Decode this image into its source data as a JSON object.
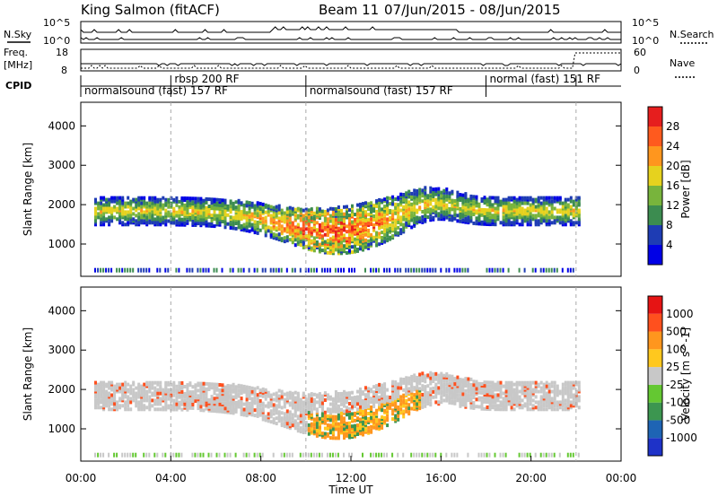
{
  "header": {
    "station": "King Salmon (fitACF)",
    "beam": "Beam 11",
    "dates": "07/Jun/2015 - 08/Jun/2015"
  },
  "panels": {
    "nsky_label": "N.Sky",
    "nsearch_label": "N.Search",
    "freq_label_1": "Freq.",
    "freq_label_2": "[MHz]",
    "nave_label": "Nave",
    "cpid_label": "CPID",
    "nsky_ticks": [
      "10^5",
      "10^0"
    ],
    "nsearch_ticks": [
      "10^5",
      "10^0"
    ],
    "freq_ticks": [
      "18",
      "8"
    ],
    "nave_ticks": [
      "60",
      "0"
    ]
  },
  "cpid_segments": [
    {
      "label": "normalsound (fast) 157 RF",
      "start_h": 0.0,
      "end_h": 4.0
    },
    {
      "label": "rbsp 200 RF",
      "start_h": 4.0,
      "end_h": 10.0
    },
    {
      "label": "normalsound (fast) 157 RF",
      "start_h": 10.0,
      "end_h": 18.0
    },
    {
      "label": "normal (fast) 151 RF",
      "start_h": 18.0,
      "end_h": 22.0
    }
  ],
  "chart_data": [
    {
      "type": "heatmap",
      "parameter": "Power",
      "ylabel": "Slant Range [km]",
      "colorbar_label": "Power [dB]",
      "colorbar_ticks": [
        "4",
        "8",
        "12",
        "16",
        "20",
        "24",
        "28"
      ],
      "colorbar_colors": [
        "#0000e6",
        "#1e3cb4",
        "#3c8c50",
        "#78b43c",
        "#e6d21e",
        "#ff961e",
        "#ff5a1e",
        "#e61e1e"
      ],
      "ylim": [
        180,
        4600
      ],
      "yticks": [
        "1000",
        "2000",
        "3000",
        "4000"
      ],
      "xlim_hours": [
        0,
        24
      ]
    },
    {
      "type": "heatmap",
      "parameter": "Velocity",
      "ylabel": "Slant Range [km]",
      "xlabel": "Time UT",
      "colorbar_label": "Velocity [m s^-1]",
      "colorbar_ticks": [
        "1000",
        "500",
        "100",
        "25",
        "-25",
        "-100",
        "-500",
        "-1000"
      ],
      "colorbar_colors": [
        "#1e32c8",
        "#1e64b4",
        "#3c9650",
        "#64c832",
        "#c8c8c8",
        "#ffc81e",
        "#ff961e",
        "#ff501e",
        "#e61414"
      ],
      "ylim": [
        180,
        4600
      ],
      "yticks": [
        "1000",
        "2000",
        "3000",
        "4000"
      ],
      "xticks": [
        "00:00",
        "04:00",
        "08:00",
        "12:00",
        "16:00",
        "20:00",
        "00:00"
      ],
      "xlim_hours": [
        0,
        24
      ]
    }
  ]
}
